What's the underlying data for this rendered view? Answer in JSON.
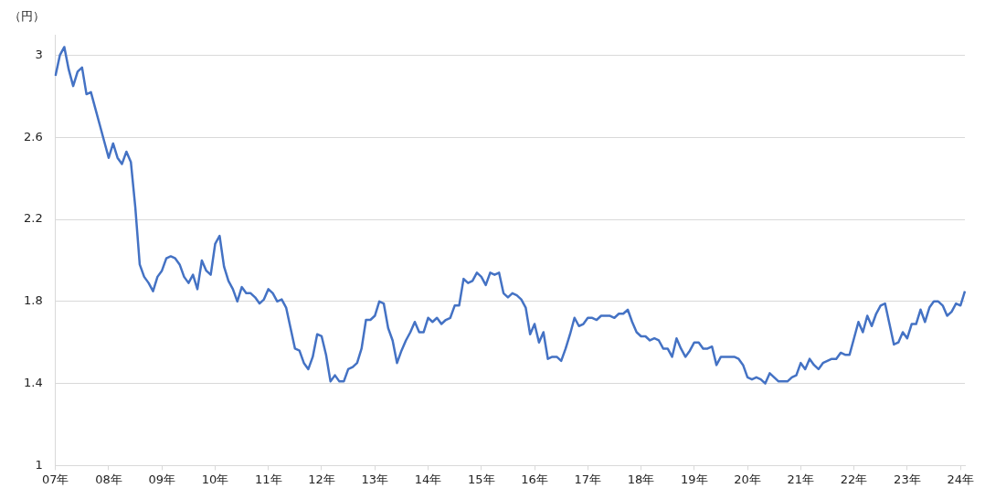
{
  "chart_data": {
    "type": "line",
    "ylabel": "（円）",
    "categories": [
      "07年",
      null,
      null,
      null,
      null,
      null,
      null,
      null,
      null,
      null,
      null,
      null,
      "08年",
      null,
      null,
      null,
      null,
      null,
      null,
      null,
      null,
      null,
      null,
      null,
      "09年",
      null,
      null,
      null,
      null,
      null,
      null,
      null,
      null,
      null,
      null,
      null,
      "10年",
      null,
      null,
      null,
      null,
      null,
      null,
      null,
      null,
      null,
      null,
      null,
      "11年",
      null,
      null,
      null,
      null,
      null,
      null,
      null,
      null,
      null,
      null,
      null,
      "12年",
      null,
      null,
      null,
      null,
      null,
      null,
      null,
      null,
      null,
      null,
      null,
      "13年",
      null,
      null,
      null,
      null,
      null,
      null,
      null,
      null,
      null,
      null,
      null,
      "14年",
      null,
      null,
      null,
      null,
      null,
      null,
      null,
      null,
      null,
      null,
      null,
      "15年",
      null,
      null,
      null,
      null,
      null,
      null,
      null,
      null,
      null,
      null,
      null,
      "16年",
      null,
      null,
      null,
      null,
      null,
      null,
      null,
      null,
      null,
      null,
      null,
      "17年",
      null,
      null,
      null,
      null,
      null,
      null,
      null,
      null,
      null,
      null,
      null,
      "18年",
      null,
      null,
      null,
      null,
      null,
      null,
      null,
      null,
      null,
      null,
      null,
      "19年",
      null,
      null,
      null,
      null,
      null,
      null,
      null,
      null,
      null,
      null,
      null,
      "20年",
      null,
      null,
      null,
      null,
      null,
      null,
      null,
      null,
      null,
      null,
      null,
      "21年",
      null,
      null,
      null,
      null,
      null,
      null,
      null,
      null,
      null,
      null,
      null,
      "22年",
      null,
      null,
      null,
      null,
      null,
      null,
      null,
      null,
      null,
      null,
      null,
      "23年",
      null,
      null,
      null,
      null,
      null,
      null,
      null,
      null,
      null,
      null,
      null,
      "24年",
      null
    ],
    "series": [
      {
        "color": "#4472c4",
        "values": [
          2.9,
          3.0,
          3.04,
          2.93,
          2.85,
          2.92,
          2.94,
          2.81,
          2.82,
          2.74,
          2.66,
          2.58,
          2.5,
          2.57,
          2.5,
          2.47,
          2.53,
          2.48,
          2.26,
          1.98,
          1.92,
          1.89,
          1.85,
          1.92,
          1.95,
          2.01,
          2.02,
          2.01,
          1.98,
          1.92,
          1.89,
          1.93,
          1.86,
          2.0,
          1.95,
          1.93,
          2.08,
          2.12,
          1.97,
          1.9,
          1.86,
          1.8,
          1.87,
          1.84,
          1.84,
          1.82,
          1.79,
          1.81,
          1.86,
          1.84,
          1.8,
          1.81,
          1.77,
          1.67,
          1.57,
          1.56,
          1.5,
          1.47,
          1.53,
          1.64,
          1.63,
          1.54,
          1.41,
          1.44,
          1.41,
          1.41,
          1.47,
          1.48,
          1.5,
          1.57,
          1.71,
          1.71,
          1.73,
          1.8,
          1.79,
          1.67,
          1.61,
          1.5,
          1.56,
          1.61,
          1.65,
          1.7,
          1.65,
          1.65,
          1.72,
          1.7,
          1.72,
          1.69,
          1.71,
          1.72,
          1.78,
          1.78,
          1.91,
          1.89,
          1.9,
          1.94,
          1.92,
          1.88,
          1.94,
          1.93,
          1.94,
          1.84,
          1.82,
          1.84,
          1.83,
          1.81,
          1.77,
          1.64,
          1.69,
          1.6,
          1.65,
          1.52,
          1.53,
          1.53,
          1.51,
          1.57,
          1.64,
          1.72,
          1.68,
          1.69,
          1.72,
          1.72,
          1.71,
          1.73,
          1.73,
          1.73,
          1.72,
          1.74,
          1.74,
          1.76,
          1.7,
          1.65,
          1.63,
          1.63,
          1.61,
          1.62,
          1.61,
          1.57,
          1.57,
          1.53,
          1.62,
          1.57,
          1.53,
          1.56,
          1.6,
          1.6,
          1.57,
          1.57,
          1.58,
          1.49,
          1.53,
          1.53,
          1.53,
          1.53,
          1.52,
          1.49,
          1.43,
          1.42,
          1.43,
          1.42,
          1.4,
          1.45,
          1.43,
          1.41,
          1.41,
          1.41,
          1.43,
          1.44,
          1.5,
          1.47,
          1.52,
          1.49,
          1.47,
          1.5,
          1.51,
          1.52,
          1.52,
          1.55,
          1.54,
          1.54,
          1.62,
          1.7,
          1.65,
          1.73,
          1.68,
          1.74,
          1.78,
          1.79,
          1.69,
          1.59,
          1.6,
          1.65,
          1.62,
          1.69,
          1.69,
          1.76,
          1.7,
          1.77,
          1.8,
          1.8,
          1.78,
          1.73,
          1.75,
          1.79,
          1.78,
          1.85
        ]
      }
    ],
    "ylim": [
      1,
      3.1
    ],
    "yticks": [
      1,
      1.4,
      1.8,
      2.2,
      2.6,
      3
    ],
    "grid": "y",
    "legend": false,
    "marker": "none",
    "line_style": "solid"
  }
}
